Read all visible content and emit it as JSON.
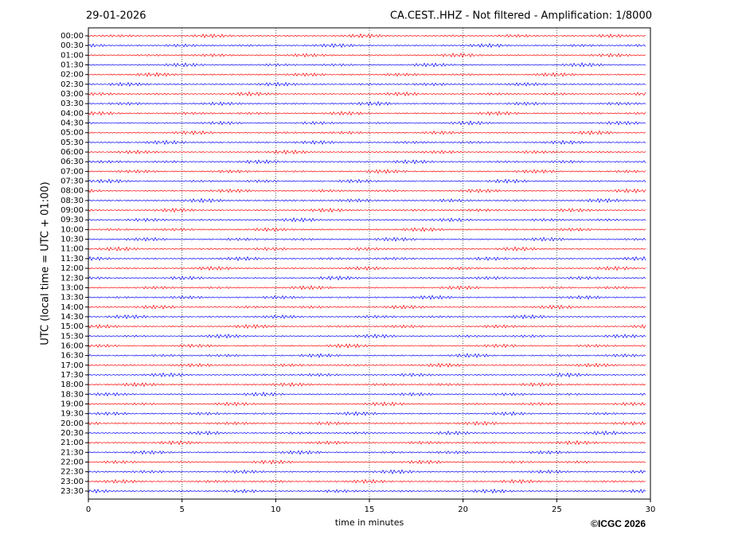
{
  "chart_data": {
    "type": "helicorder",
    "date": "29-01-2026",
    "title": "CA.CEST..HHZ - Not filtered - Amplification: 1/8000",
    "y_label": "UTC (local time = UTC + 01:00)",
    "x_label": "time in minutes",
    "copyright": "©ICGC 2026",
    "categories": [
      "00:00",
      "00:30",
      "01:00",
      "01:30",
      "02:00",
      "02:30",
      "03:00",
      "03:30",
      "04:00",
      "04:30",
      "05:00",
      "05:30",
      "06:00",
      "06:30",
      "07:00",
      "07:30",
      "08:00",
      "08:30",
      "09:00",
      "09:30",
      "10:00",
      "10:30",
      "11:00",
      "11:30",
      "12:00",
      "12:30",
      "13:00",
      "13:30",
      "14:00",
      "14:30",
      "15:00",
      "15:30",
      "16:00",
      "16:30",
      "17:00",
      "17:30",
      "18:00",
      "18:30",
      "19:00",
      "19:30",
      "20:00",
      "20:30",
      "21:00",
      "21:30",
      "22:00",
      "22:30",
      "23:00",
      "23:30"
    ],
    "colors": [
      "#ff0000",
      "#0000ff"
    ],
    "xlim": [
      0,
      30
    ],
    "xticks": [
      0,
      5,
      10,
      15,
      20,
      25,
      30
    ],
    "grid": true
  }
}
